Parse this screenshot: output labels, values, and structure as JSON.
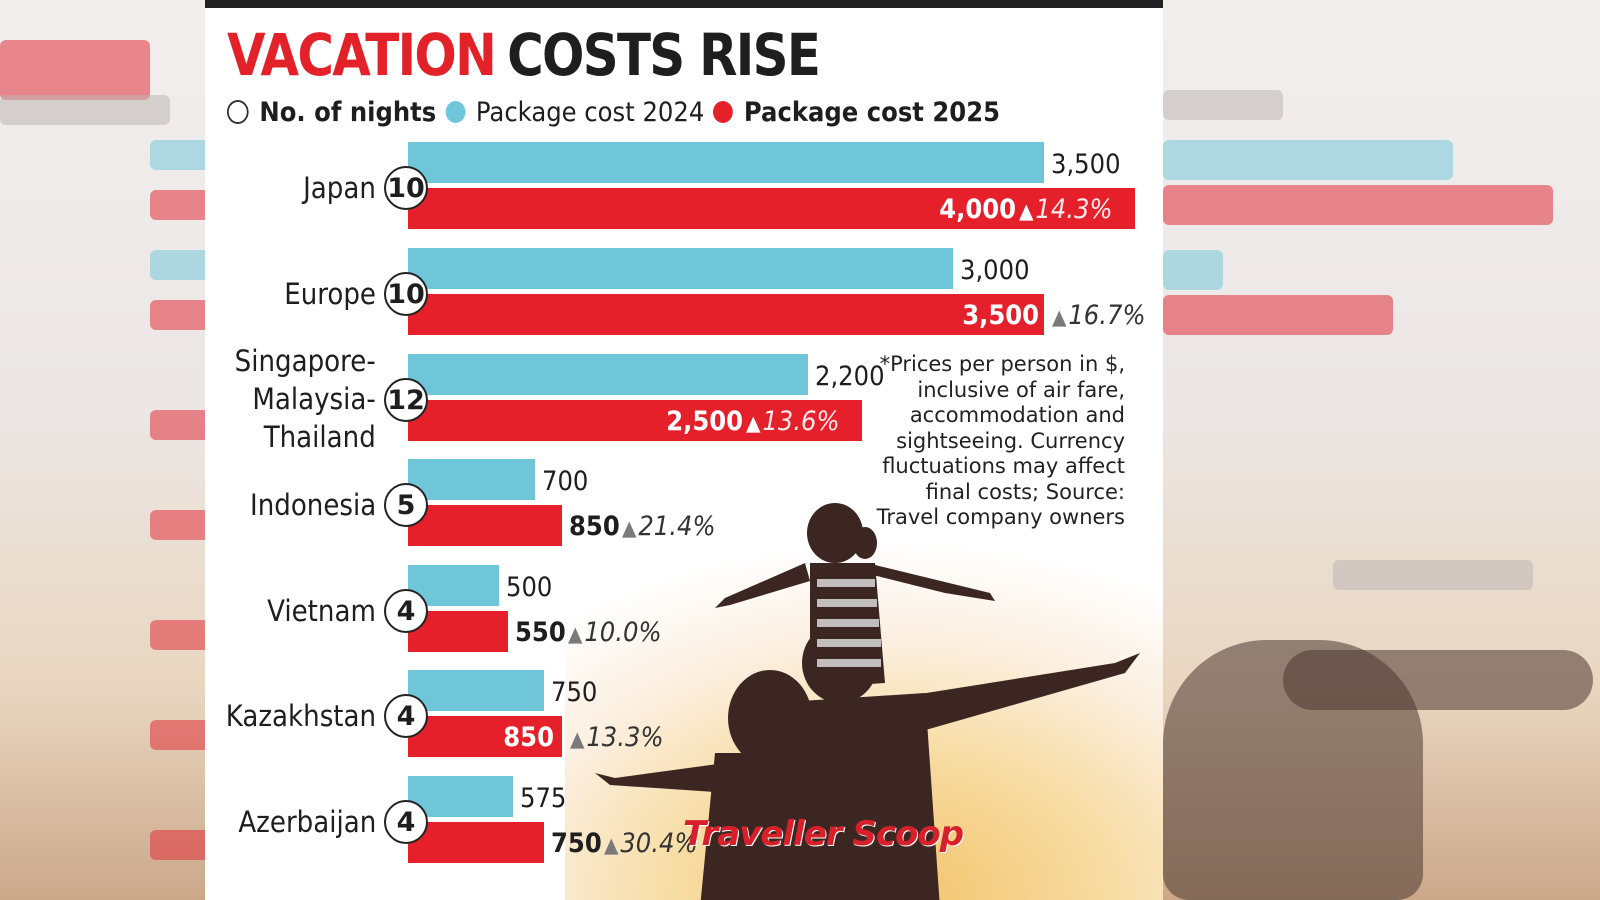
{
  "title_part1": "VACATION",
  "title_part2": "COSTS RISE",
  "legend": {
    "nights": "No. of nights",
    "cost2024": "Package cost 2024",
    "cost2025": "Package cost 2025"
  },
  "colors": {
    "cost2024": "#6fc6d8",
    "cost2025": "#e5202a",
    "title_red": "#e32129"
  },
  "note": "*Prices per person in $, inclusive of air fare, accommodation and sightseeing. Currency fluctuations may affect final costs; Source: Travel company owners",
  "watermark": "Traveller Scoop",
  "chart_data": {
    "type": "bar",
    "orientation": "horizontal",
    "categories": [
      "Japan",
      "Europe",
      "Singapore- Malaysia- Thailand",
      "Indonesia",
      "Vietnam",
      "Kazakhstan",
      "Azerbaijan"
    ],
    "nights": [
      10,
      10,
      12,
      5,
      4,
      4,
      4
    ],
    "series": [
      {
        "name": "Package cost 2024",
        "values": [
          3500,
          3000,
          2200,
          700,
          500,
          750,
          575
        ],
        "labels": [
          "3,500",
          "3,000",
          "2,200",
          "700",
          "500",
          "750",
          "575"
        ]
      },
      {
        "name": "Package cost 2025",
        "values": [
          4000,
          3500,
          2500,
          850,
          550,
          850,
          750
        ],
        "labels": [
          "4,000",
          "3,500",
          "2,500",
          "850",
          "550",
          "850",
          "750"
        ]
      }
    ],
    "change_labels": [
      "14.3%",
      "16.7%",
      "13.6%",
      "21.4%",
      "10.0%",
      "13.3%",
      "30.4%"
    ],
    "xlim": [
      0,
      4000
    ],
    "grid": false,
    "legend_position": "top"
  }
}
